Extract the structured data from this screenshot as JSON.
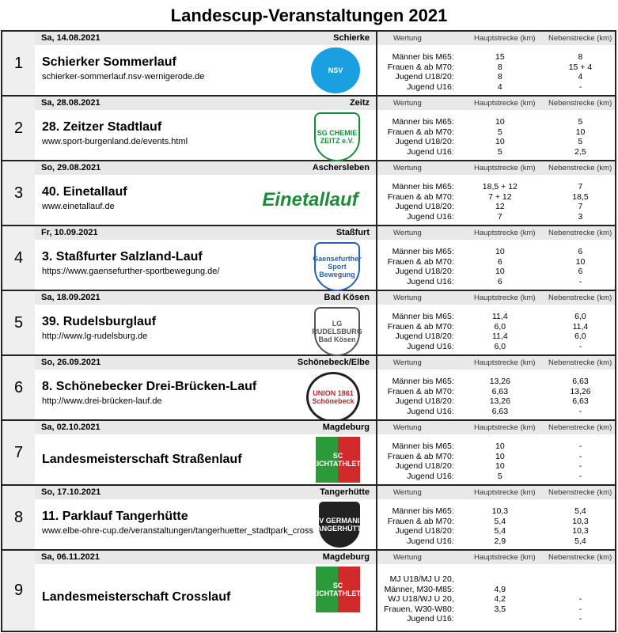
{
  "title": "Landescup-Veranstaltungen 2021",
  "headers": {
    "wertung": "Wertung",
    "haupt": "Hauptstrecke (km)",
    "neben": "Nebenstrecke (km)"
  },
  "events": [
    {
      "num": "1",
      "date": "Sa, 14.08.2021",
      "place": "Schierke",
      "name": "Schierker Sommerlauf",
      "url": "schierker-sommerlauf.nsv-wernigerode.de",
      "logo": "NSV",
      "logo_color": "#1aa0e0",
      "results": [
        [
          "Männer bis M65:",
          "15",
          "8"
        ],
        [
          "Frauen & ab M70:",
          "8",
          "15 + 4"
        ],
        [
          "Jugend U18/20:",
          "8",
          "4"
        ],
        [
          "Jugend U16:",
          "4",
          "-"
        ]
      ]
    },
    {
      "num": "2",
      "date": "Sa, 28.08.2021",
      "place": "Zeitz",
      "name": "28. Zeitzer Stadtlauf",
      "url": "www.sport-burgenland.de/events.html",
      "logo": "SG CHEMIE ZEITZ e.V.",
      "logo_color": "#1a8a3a",
      "results": [
        [
          "Männer bis M65:",
          "10",
          "5"
        ],
        [
          "Frauen & ab M70:",
          "5",
          "10"
        ],
        [
          "Jugend U18/20:",
          "10",
          "5"
        ],
        [
          "Jugend U16:",
          "5",
          "2,5"
        ]
      ]
    },
    {
      "num": "3",
      "date": "So, 29.08.2021",
      "place": "Aschersleben",
      "name": "40. Einetallauf",
      "url": "www.einetallauf.de",
      "logo": "Einetallauf",
      "logo_color": "#1f8a3a",
      "results": [
        [
          "Männer bis M65:",
          "18,5 + 12",
          "7"
        ],
        [
          "Frauen & ab M70:",
          "7 + 12",
          "18,5"
        ],
        [
          "Jugend U18/20:",
          "12",
          "7"
        ],
        [
          "Jugend U16:",
          "7",
          "3"
        ]
      ]
    },
    {
      "num": "4",
      "date": "Fr, 10.09.2021",
      "place": "Staßfurt",
      "name": "3. Staßfurter Salzland-Lauf",
      "url": "https://www.gaensefurther-sportbewegung.de/",
      "logo": "Gaensefurther Sport Bewegung",
      "logo_color": "#2a5fb0",
      "results": [
        [
          "Männer bis M65:",
          "10",
          "6"
        ],
        [
          "Frauen & ab M70:",
          "6",
          "10"
        ],
        [
          "Jugend U18/20:",
          "10",
          "6"
        ],
        [
          "Jugend U16:",
          "6",
          "-"
        ]
      ]
    },
    {
      "num": "5",
      "date": "Sa, 18.09.2021",
      "place": "Bad Kösen",
      "name": "39. Rudelsburglauf",
      "url": "http://www.lg-rudelsburg.de",
      "logo": "LG RUDELSBURG Bad Kösen",
      "logo_color": "#555555",
      "results": [
        [
          "Männer bis M65:",
          "11,4",
          "6,0"
        ],
        [
          "Frauen & ab M70:",
          "6,0",
          "11,4"
        ],
        [
          "Jugend U18/20:",
          "11,4",
          "6,0"
        ],
        [
          "Jugend U16:",
          "6,0",
          "-"
        ]
      ]
    },
    {
      "num": "6",
      "date": "So, 26.09.2021",
      "place": "Schönebeck/Elbe",
      "name": "8. Schönebecker Drei-Brücken-Lauf",
      "url": "http://www.drei-brücken-lauf.de",
      "logo": "UNION 1861 Schönebeck",
      "logo_color": "#c0282d",
      "results": [
        [
          "Männer bis M65:",
          "13,26",
          "6,63"
        ],
        [
          "Frauen & ab M70:",
          "6,63",
          "13,26"
        ],
        [
          "Jugend U18/20:",
          "13,26",
          "6,63"
        ],
        [
          "Jugend U16:",
          "6,63",
          "-"
        ]
      ]
    },
    {
      "num": "7",
      "date": "Sa, 02.10.2021",
      "place": "Magdeburg",
      "name": "Landesmeisterschaft Straßenlauf",
      "url": "",
      "logo": "SC LEICHTATHLETIK",
      "logo_color": "#2a9a3a",
      "results": [
        [
          "Männer bis M65:",
          "10",
          "-"
        ],
        [
          "Frauen & ab M70:",
          "10",
          "-"
        ],
        [
          "Jugend U18/20:",
          "10",
          "-"
        ],
        [
          "Jugend U16:",
          "5",
          "-"
        ]
      ]
    },
    {
      "num": "8",
      "date": "So, 17.10.2021",
      "place": "Tangerhütte",
      "name": "11. Parklauf Tangerhütte",
      "url": "www.elbe-ohre-cup.de/veranstaltungen/tangerhuetter_stadtpark_cross",
      "logo": "SV GERMANIA TANGERHÜTTE",
      "logo_color": "#222222",
      "results": [
        [
          "Männer bis M65:",
          "10,3",
          "5,4"
        ],
        [
          "Frauen & ab M70:",
          "5,4",
          "10,3"
        ],
        [
          "Jugend U18/20:",
          "5,4",
          "10,3"
        ],
        [
          "Jugend U16:",
          "2,9",
          "5,4"
        ]
      ]
    },
    {
      "num": "9",
      "date": "Sa, 06.11.2021",
      "place": "Magdeburg",
      "name": "Landesmeisterschaft Crosslauf",
      "url": "",
      "logo": "SC LEICHTATHLETIK",
      "logo_color": "#2a9a3a",
      "results": [
        [
          "MJ U18/MJ U 20,",
          "",
          ""
        ],
        [
          "Männer, M30-M85:",
          "4,9",
          ""
        ],
        [
          "WJ U18/WJ U 20,",
          "4,2",
          "-"
        ],
        [
          "Frauen, W30-W80:",
          "3,5",
          "-"
        ],
        [
          "Jugend U16:",
          "",
          "-"
        ]
      ]
    }
  ]
}
